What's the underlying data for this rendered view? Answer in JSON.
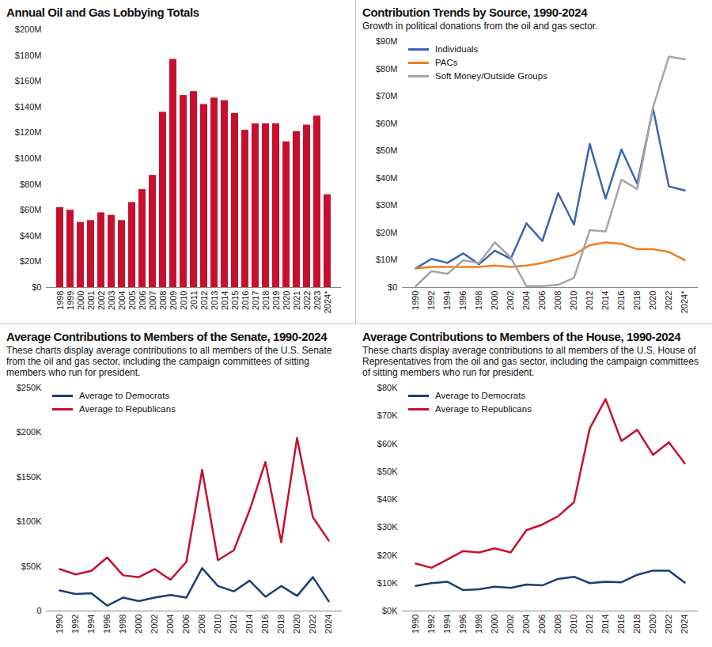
{
  "chart_data": [
    {
      "type": "bar",
      "title": "Annual Oil and Gas Lobbying Totals",
      "categories": [
        "1998",
        "1999",
        "2000",
        "2001",
        "2002",
        "2003",
        "2004",
        "2005",
        "2006",
        "2007",
        "2008",
        "2009",
        "2010",
        "2011",
        "2012",
        "2013",
        "2014",
        "2015",
        "2016",
        "2017",
        "2018",
        "2019",
        "2020",
        "2021",
        "2022",
        "2023",
        "2024*"
      ],
      "values": [
        62,
        60,
        50.5,
        52,
        58,
        56,
        52,
        66,
        76,
        87,
        136,
        177,
        149,
        152,
        142,
        147,
        145,
        135,
        122,
        127,
        127,
        127,
        113,
        121,
        126,
        133,
        72
      ],
      "color": "#c8102e",
      "ylim": [
        0,
        200
      ],
      "yticks": [
        {
          "value": 0,
          "label": "$0"
        },
        {
          "value": 20,
          "label": "$20M"
        },
        {
          "value": 40,
          "label": "$40M"
        },
        {
          "value": 60,
          "label": "$60M"
        },
        {
          "value": 80,
          "label": "$80M"
        },
        {
          "value": 100,
          "label": "$100M"
        },
        {
          "value": 120,
          "label": "$120M"
        },
        {
          "value": 140,
          "label": "$140M"
        },
        {
          "value": 160,
          "label": "$160M"
        },
        {
          "value": 180,
          "label": "$180M"
        },
        {
          "value": 200,
          "label": "$200M"
        }
      ],
      "grid": false
    },
    {
      "type": "line",
      "title": "Contribution Trends by Source, 1990-2024",
      "subtitle": "Growth in political donations from the oil and gas sector.",
      "categories": [
        "1990",
        "1992",
        "1994",
        "1996",
        "1998",
        "2000",
        "2002",
        "2004",
        "2006",
        "2008",
        "2010",
        "2012",
        "2014",
        "2016",
        "2018",
        "2020",
        "2022",
        "2024*"
      ],
      "series": [
        {
          "name": "Individuals",
          "color": "#3a66b0",
          "values": [
            7,
            10.5,
            9,
            12.5,
            8.5,
            13.5,
            10.5,
            23.5,
            17,
            34.5,
            23,
            52.5,
            32.5,
            50.5,
            38,
            65.5,
            37,
            35.5
          ]
        },
        {
          "name": "PACs",
          "color": "#ef7d22",
          "values": [
            7,
            7.5,
            7.5,
            7.5,
            7.5,
            8,
            7.5,
            8,
            9,
            10.5,
            12,
            15.5,
            16.5,
            16,
            14,
            14,
            13,
            10
          ]
        },
        {
          "name": "Soft Money/Outside Groups",
          "color": "#a5a5a5",
          "values": [
            0.5,
            6,
            5,
            10,
            9,
            16.5,
            11,
            0.5,
            0.5,
            1,
            3.5,
            21,
            20.5,
            39.5,
            36,
            66,
            84.5,
            83.5
          ]
        }
      ],
      "ylim": [
        0,
        90
      ],
      "yticks": [
        {
          "value": 0,
          "label": "$0"
        },
        {
          "value": 10,
          "label": "$10M"
        },
        {
          "value": 20,
          "label": "$20M"
        },
        {
          "value": 30,
          "label": "$30M"
        },
        {
          "value": 40,
          "label": "$40M"
        },
        {
          "value": 50,
          "label": "$50M"
        },
        {
          "value": 60,
          "label": "$60M"
        },
        {
          "value": 70,
          "label": "$70M"
        },
        {
          "value": 80,
          "label": "$80M"
        },
        {
          "value": 90,
          "label": "$90M"
        }
      ],
      "grid": false,
      "legend": "top-left"
    },
    {
      "type": "line",
      "title": "Average Contributions to Members of the Senate, 1990-2024",
      "subtitle": "These charts display average contributions to all members of the U.S. Senate from the oil and gas sector, including the campaign committees of sitting members who run for president.",
      "categories": [
        "1990",
        "1992",
        "1994",
        "1996",
        "1998",
        "2000",
        "2002",
        "2004",
        "2006",
        "2008",
        "2010",
        "2012",
        "2014",
        "2016",
        "2018",
        "2020",
        "2022",
        "2024"
      ],
      "series": [
        {
          "name": "Average to Democrats",
          "color": "#1b3f73",
          "values": [
            23,
            19,
            20,
            6,
            15,
            11,
            15,
            18,
            15,
            48,
            28,
            22,
            34,
            16,
            28,
            17,
            38,
            11
          ]
        },
        {
          "name": "Average to Republicans",
          "color": "#c8102e",
          "values": [
            47,
            41,
            45,
            60,
            40,
            38,
            47,
            35,
            55,
            158,
            57,
            68,
            113,
            167,
            77,
            194,
            105,
            79
          ]
        }
      ],
      "ylim": [
        0,
        250
      ],
      "yticks": [
        0,
        {
          "value": 50,
          "label": "$50K"
        },
        {
          "value": 100,
          "label": "$100K"
        },
        {
          "value": 150,
          "label": "$150K"
        },
        {
          "value": 200,
          "label": "$200K"
        },
        {
          "value": 250,
          "label": "$250K"
        }
      ],
      "grid": false,
      "legend": "top-left"
    },
    {
      "type": "line",
      "title": "Average Contributions to Members of the House, 1990-2024",
      "subtitle": "These charts display average contributions to all members of the U.S. House of Representatives from the oil and gas sector, including the campaign committees of sitting members who run for president.",
      "categories": [
        "1990",
        "1992",
        "1994",
        "1996",
        "1998",
        "2000",
        "2002",
        "2004",
        "2006",
        "2008",
        "2010",
        "2012",
        "2014",
        "2016",
        "2018",
        "2020",
        "2022",
        "2024"
      ],
      "series": [
        {
          "name": "Average to Democrats",
          "color": "#1b3f73",
          "values": [
            9,
            10,
            10.5,
            7.5,
            7.8,
            8.7,
            8.3,
            9.5,
            9.2,
            11.5,
            12.3,
            10,
            10.5,
            10.3,
            13,
            14.5,
            14.5,
            10.2
          ]
        },
        {
          "name": "Average to Republicans",
          "color": "#c8102e",
          "values": [
            17,
            15.5,
            18.5,
            21.5,
            21,
            22.5,
            21,
            29,
            31,
            34,
            39,
            65.5,
            76,
            61,
            65,
            56,
            60.5,
            53
          ]
        }
      ],
      "ylim": [
        0,
        80
      ],
      "yticks": [
        {
          "value": 0,
          "label": "$0K"
        },
        {
          "value": 10,
          "label": "$10K"
        },
        {
          "value": 20,
          "label": "$20K"
        },
        {
          "value": 30,
          "label": "$30K"
        },
        {
          "value": 40,
          "label": "$40K"
        },
        {
          "value": 50,
          "label": "$50K"
        },
        {
          "value": 60,
          "label": "$60K"
        },
        {
          "value": 70,
          "label": "$70K"
        },
        {
          "value": 80,
          "label": "$80K"
        }
      ],
      "grid": false,
      "legend": "top-left"
    }
  ]
}
